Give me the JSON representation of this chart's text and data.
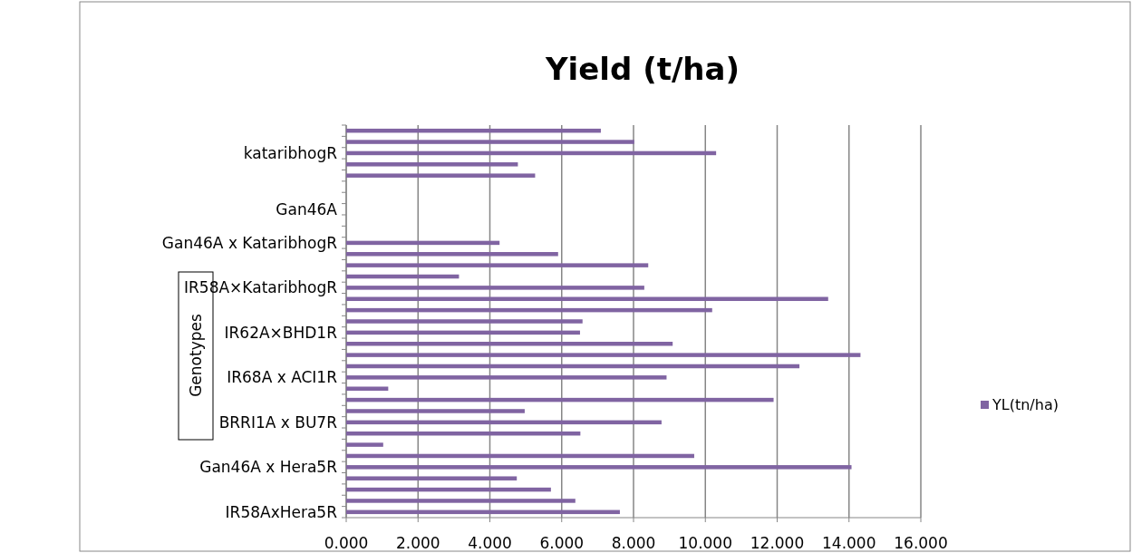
{
  "chart_data": {
    "type": "bar",
    "orientation": "horizontal",
    "title": "Yield (t/ha)",
    "ylabel": "Genotypes",
    "categories": [
      null,
      null,
      "kataribhogR",
      null,
      null,
      null,
      null,
      "Gan46A",
      null,
      null,
      "Gan46A x KataribhogR",
      null,
      null,
      null,
      "IR58A×KataribhogR",
      null,
      null,
      null,
      "IR62A×BHD1R",
      null,
      null,
      null,
      "IR68A x ACI1R",
      null,
      null,
      null,
      "BRRI1A x BU7R",
      null,
      null,
      null,
      "Gan46A x Hera5R",
      null,
      null,
      null,
      "IR58AxHera5R"
    ],
    "series": [
      {
        "name": "YL(tn/ha)",
        "color": "#8064a2",
        "values": [
          7.09,
          8.02,
          10.3,
          4.78,
          5.26,
          null,
          null,
          null,
          null,
          null,
          4.27,
          5.9,
          8.41,
          3.14,
          8.3,
          13.42,
          10.19,
          6.58,
          6.51,
          9.09,
          14.32,
          12.62,
          8.92,
          1.17,
          11.9,
          4.97,
          8.78,
          6.52,
          1.03,
          9.69,
          14.07,
          4.75,
          5.7,
          6.38,
          7.62
        ]
      }
    ],
    "xlim": [
      0,
      16
    ],
    "xticks": [
      {
        "value": 0,
        "label": "0.000"
      },
      {
        "value": 2,
        "label": "2.000"
      },
      {
        "value": 4,
        "label": "4.000"
      },
      {
        "value": 6,
        "label": "6.000"
      },
      {
        "value": 8,
        "label": "8.000"
      },
      {
        "value": 10,
        "label": "10.000"
      },
      {
        "value": 12,
        "label": "12.000"
      },
      {
        "value": 14,
        "label": "14.000"
      },
      {
        "value": 16,
        "label": "16.000"
      }
    ],
    "grid": "x",
    "legend": "right"
  }
}
